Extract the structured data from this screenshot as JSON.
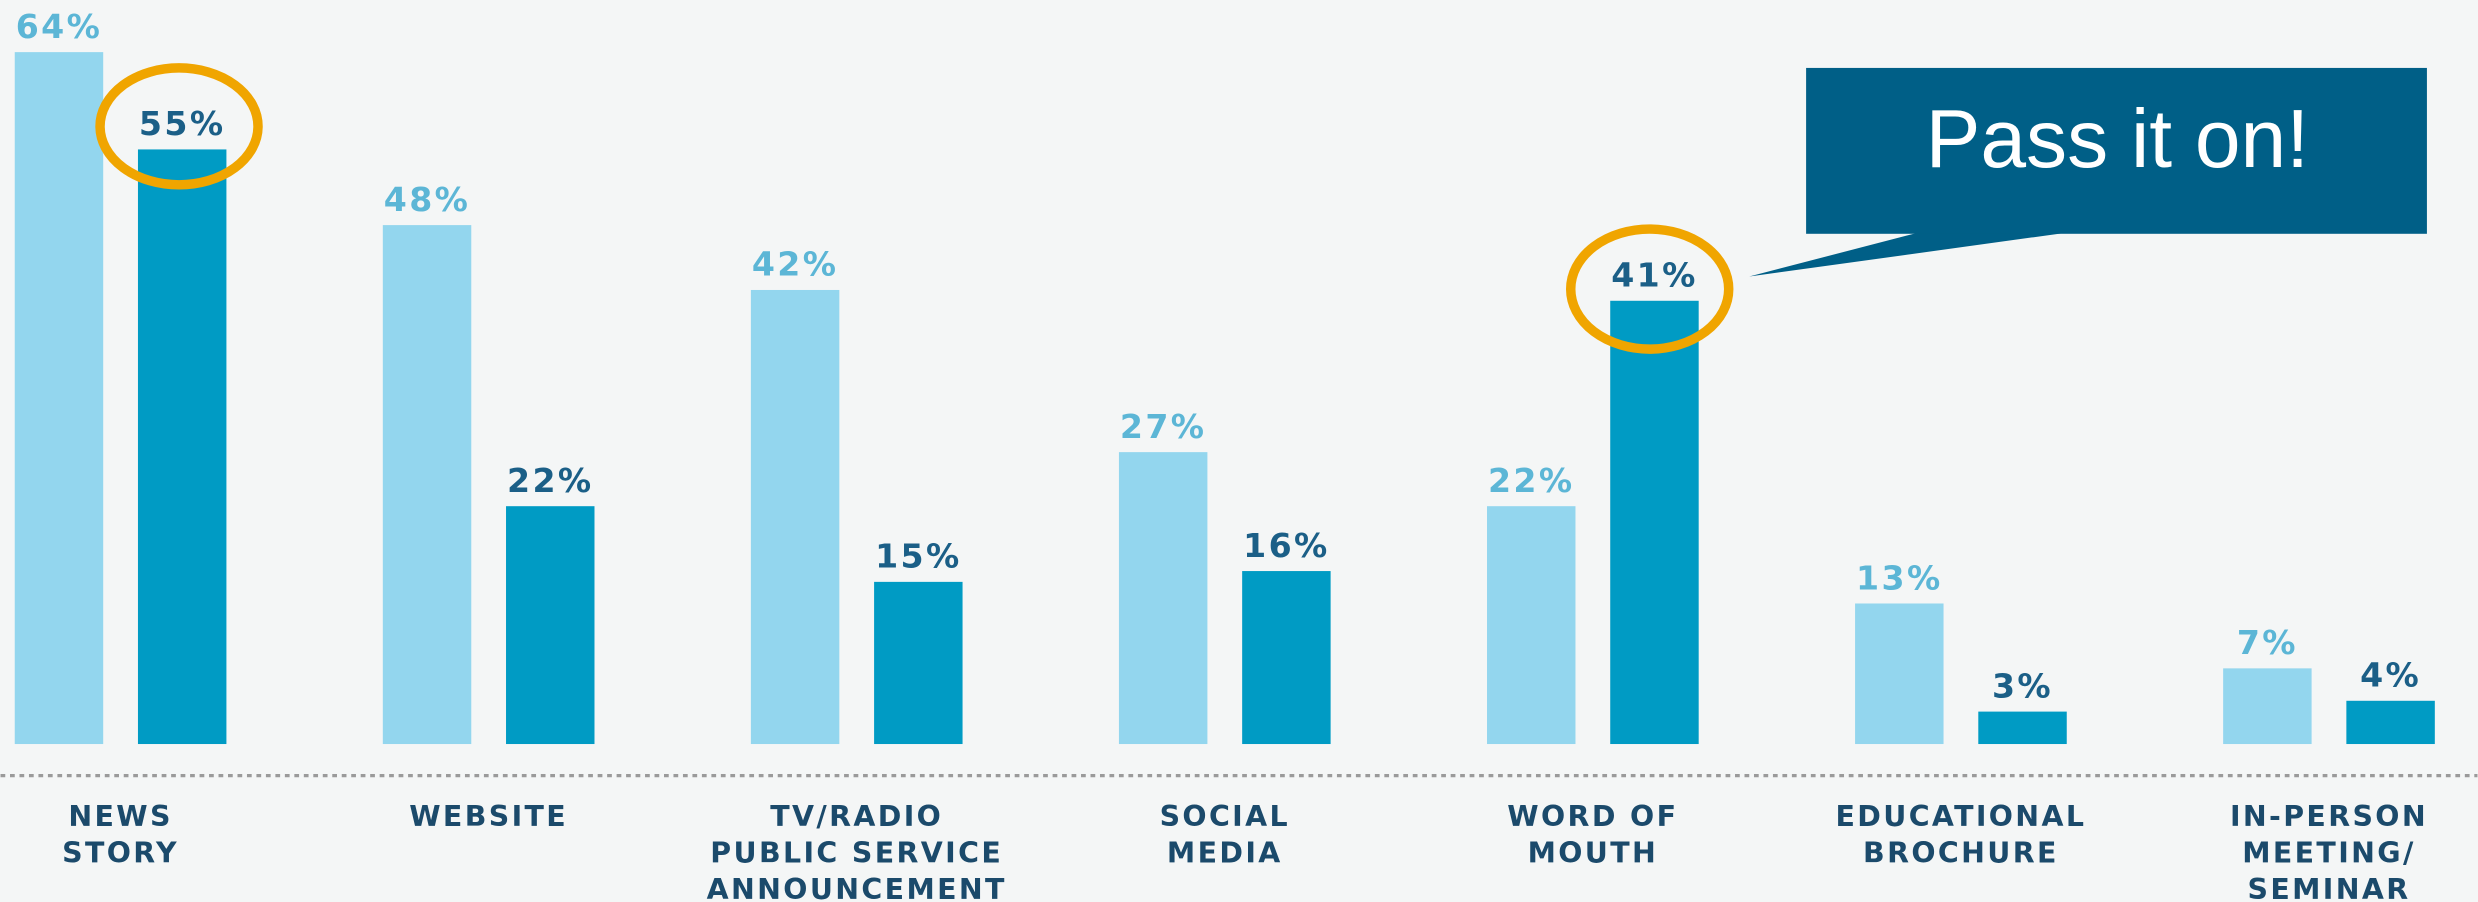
{
  "chart_data": {
    "type": "bar",
    "categories": [
      [
        "NEWS",
        "STORY"
      ],
      [
        "WEBSITE"
      ],
      [
        "TV/RADIO",
        "PUBLIC SERVICE",
        "ANNOUNCEMENT"
      ],
      [
        "SOCIAL",
        "MEDIA"
      ],
      [
        "WORD OF",
        "MOUTH"
      ],
      [
        "EDUCATIONAL",
        "BROCHURE"
      ],
      [
        "IN-PERSON",
        "MEETING/",
        "SEMINAR"
      ]
    ],
    "series": [
      {
        "color": "#93d6ee",
        "label_color": "#5cb6d6",
        "values": [
          64,
          48,
          42,
          27,
          22,
          13,
          7
        ],
        "value_labels": [
          "64%",
          "48%",
          "42%",
          "27%",
          "22%",
          "13%",
          "7%"
        ]
      },
      {
        "color": "#009bc4",
        "label_color": "#1b5f87",
        "values": [
          55,
          22,
          15,
          16,
          41,
          3,
          4
        ],
        "value_labels": [
          "55%",
          "22%",
          "15%",
          "16%",
          "41%",
          "3%",
          "4%"
        ]
      }
    ],
    "annotations": [
      "Pass it on!"
    ]
  }
}
